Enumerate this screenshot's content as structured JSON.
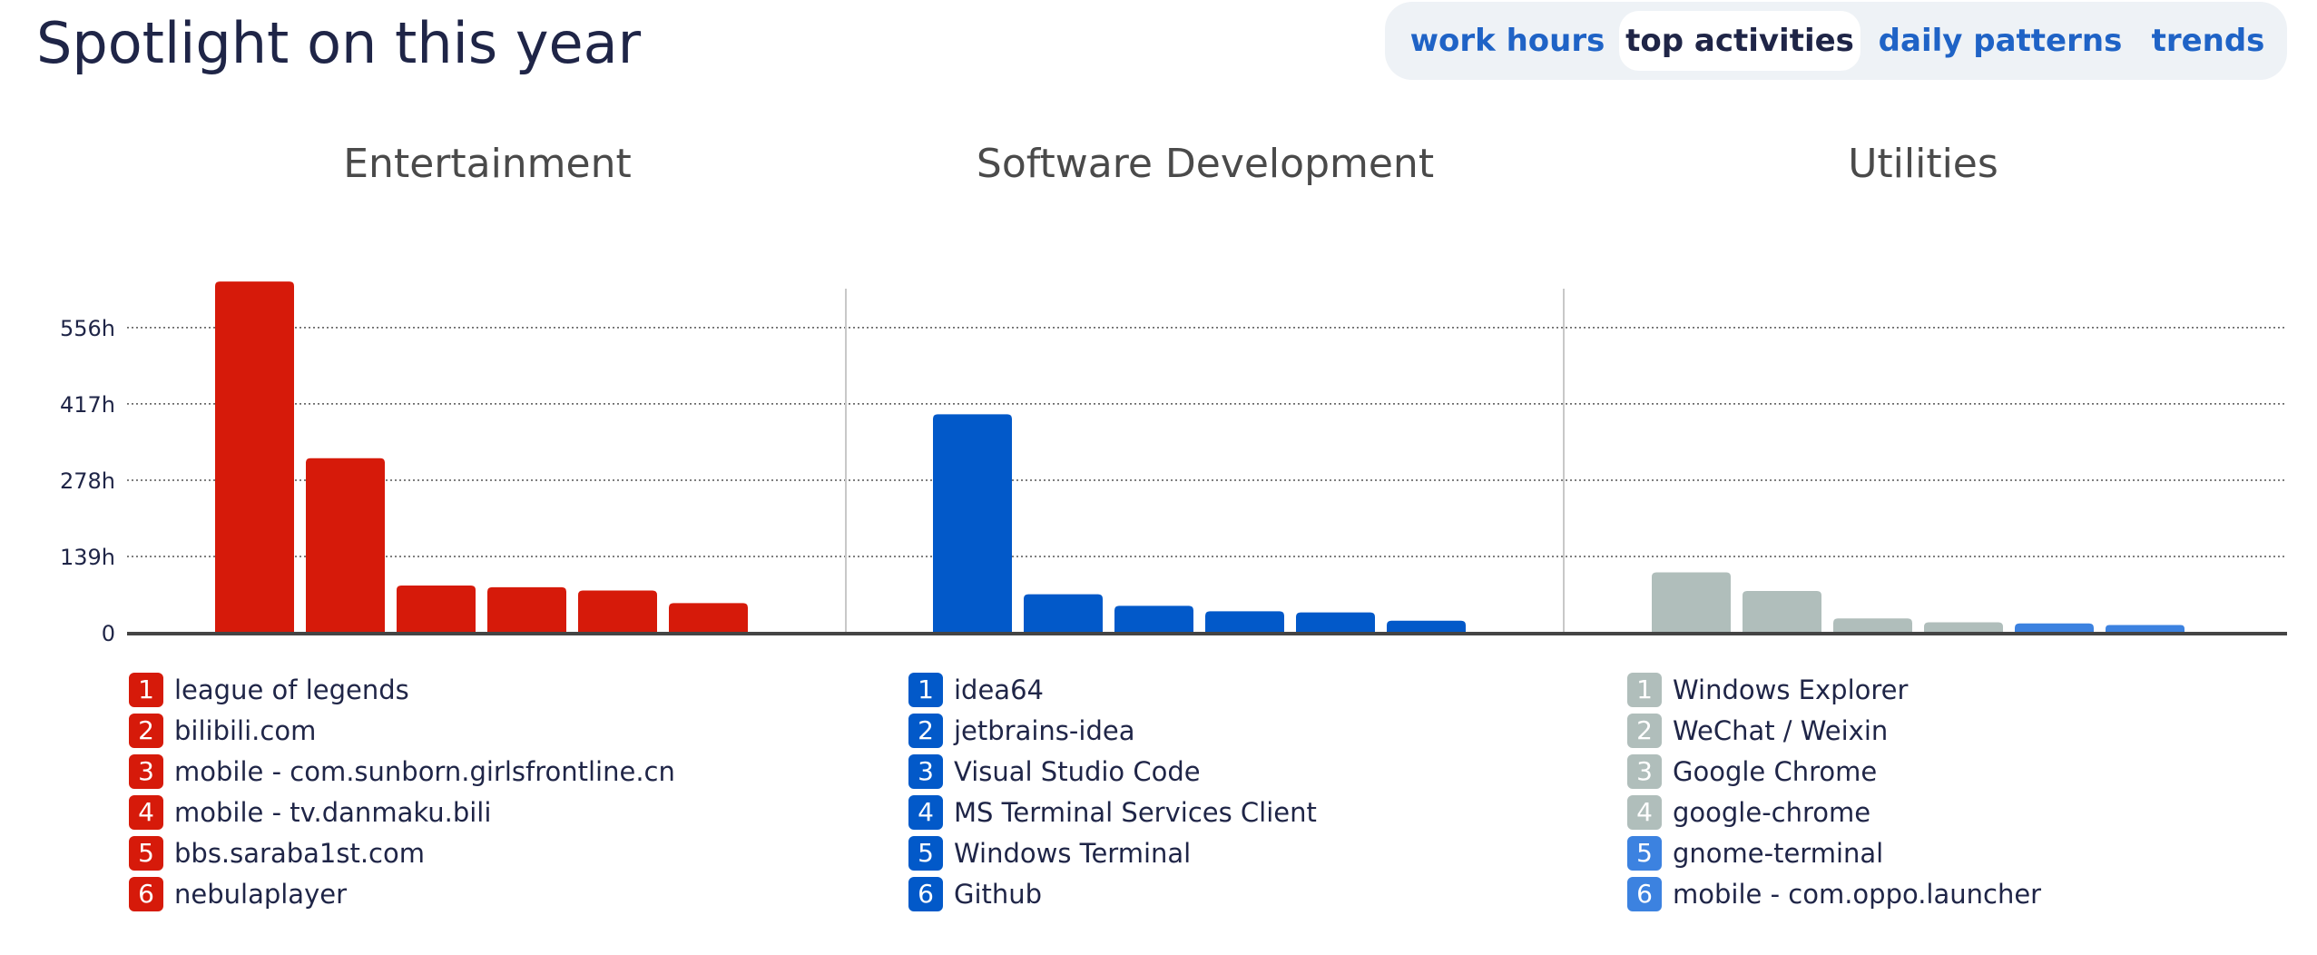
{
  "header": {
    "title": "Spotlight on this year"
  },
  "tabs": [
    {
      "label": "work hours",
      "active": false
    },
    {
      "label": "top activities",
      "active": true
    },
    {
      "label": "daily patterns",
      "active": false
    },
    {
      "label": "trends",
      "active": false
    }
  ],
  "colors": {
    "entertainment": "#d61a0a",
    "software": "#0259c9",
    "utilities_gray": "#b0bebb",
    "utilities_blue": "#3c82e0",
    "axis": "#444444",
    "grid": "#555555",
    "divider": "#c8c8c8"
  },
  "chart_data": {
    "type": "bar",
    "y_unit": "h",
    "yticks": [
      0,
      139,
      278,
      417,
      556
    ],
    "ytick_labels": [
      "0",
      "139h",
      "278h",
      "417h",
      "556h"
    ],
    "ylim": [
      0,
      640
    ],
    "grid": true,
    "panels": [
      {
        "title": "Entertainment",
        "color": "#d61a0a",
        "categories": [
          "league of legends",
          "bilibili.com",
          "mobile - com.sunborn.girlsfrontline.cn",
          "mobile - tv.danmaku.bili",
          "bbs.saraba1st.com",
          "nebulaplayer"
        ],
        "values": [
          640,
          318,
          86,
          83,
          77,
          54
        ],
        "colors": [
          "#d61a0a",
          "#d61a0a",
          "#d61a0a",
          "#d61a0a",
          "#d61a0a",
          "#d61a0a"
        ]
      },
      {
        "title": "Software Development",
        "color": "#0259c9",
        "categories": [
          "idea64",
          "jetbrains-idea",
          "Visual Studio Code",
          "MS Terminal Services Client",
          "Windows Terminal",
          "Github"
        ],
        "values": [
          398,
          70,
          49,
          39,
          37,
          22
        ],
        "colors": [
          "#0259c9",
          "#0259c9",
          "#0259c9",
          "#0259c9",
          "#0259c9",
          "#0259c9"
        ]
      },
      {
        "title": "Utilities",
        "color": "#b0bebb",
        "categories": [
          "Windows Explorer",
          "WeChat / Weixin",
          "Google Chrome",
          "google-chrome",
          "gnome-terminal",
          "mobile - com.oppo.launcher"
        ],
        "values": [
          110,
          76,
          26,
          19,
          17,
          14
        ],
        "colors": [
          "#b0bebb",
          "#b0bebb",
          "#b0bebb",
          "#b0bebb",
          "#3c82e0",
          "#3c82e0"
        ]
      }
    ]
  }
}
